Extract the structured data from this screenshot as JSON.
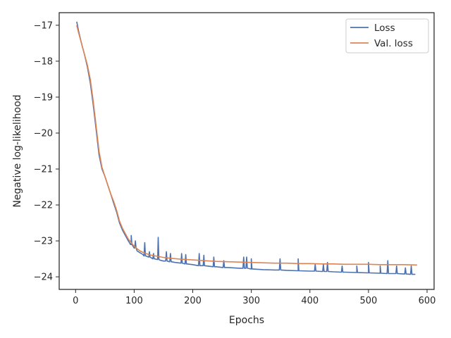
{
  "chart_data": {
    "type": "line",
    "title": "",
    "xlabel": "Epochs",
    "ylabel": "Negative log-likelihood",
    "xlim": [
      -28,
      612
    ],
    "ylim": [
      -24.35,
      -16.65
    ],
    "xticks": [
      0,
      100,
      200,
      300,
      400,
      500,
      600
    ],
    "yticks": [
      -17,
      -18,
      -19,
      -20,
      -21,
      -22,
      -23,
      -24
    ],
    "ytick_labels": [
      "−17",
      "−18",
      "−19",
      "−20",
      "−21",
      "−22",
      "−23",
      "−24"
    ],
    "grid": false,
    "legend_position": "top-right",
    "series": [
      {
        "name": "Loss",
        "color": "#4c72b0",
        "x": [
          2,
          5,
          10,
          15,
          20,
          25,
          30,
          35,
          40,
          45,
          50,
          55,
          60,
          65,
          70,
          75,
          80,
          85,
          90,
          95,
          100,
          105,
          110,
          115,
          120,
          125,
          130,
          135,
          140,
          145,
          150,
          160,
          170,
          180,
          190,
          200,
          220,
          240,
          260,
          280,
          300,
          320,
          340,
          360,
          380,
          400,
          420,
          440,
          460,
          480,
          500,
          520,
          540,
          560,
          580
        ],
        "y": [
          -16.9,
          -17.15,
          -17.5,
          -17.8,
          -18.15,
          -18.6,
          -19.2,
          -19.9,
          -20.6,
          -21.0,
          -21.2,
          -21.45,
          -21.7,
          -21.95,
          -22.2,
          -22.5,
          -22.7,
          -22.85,
          -23.0,
          -23.1,
          -23.2,
          -23.28,
          -23.33,
          -23.38,
          -23.42,
          -23.45,
          -23.48,
          -23.5,
          -23.52,
          -23.54,
          -23.56,
          -23.58,
          -23.6,
          -23.62,
          -23.64,
          -23.66,
          -23.69,
          -23.72,
          -23.74,
          -23.76,
          -23.78,
          -23.8,
          -23.81,
          -23.82,
          -23.83,
          -23.84,
          -23.85,
          -23.86,
          -23.87,
          -23.88,
          -23.89,
          -23.9,
          -23.91,
          -23.92,
          -23.93
        ],
        "spikes": [
          [
            95,
            -22.85
          ],
          [
            102,
            -23.0
          ],
          [
            118,
            -23.05
          ],
          [
            126,
            -23.3
          ],
          [
            133,
            -23.35
          ],
          [
            141,
            -22.9
          ],
          [
            155,
            -23.3
          ],
          [
            162,
            -23.35
          ],
          [
            181,
            -23.35
          ],
          [
            188,
            -23.38
          ],
          [
            211,
            -23.35
          ],
          [
            219,
            -23.4
          ],
          [
            236,
            -23.45
          ],
          [
            253,
            -23.55
          ],
          [
            287,
            -23.45
          ],
          [
            292,
            -23.45
          ],
          [
            300,
            -23.5
          ],
          [
            349,
            -23.5
          ],
          [
            380,
            -23.5
          ],
          [
            409,
            -23.65
          ],
          [
            423,
            -23.65
          ],
          [
            430,
            -23.6
          ],
          [
            455,
            -23.7
          ],
          [
            480,
            -23.7
          ],
          [
            500,
            -23.6
          ],
          [
            520,
            -23.7
          ],
          [
            533,
            -23.55
          ],
          [
            548,
            -23.7
          ],
          [
            563,
            -23.75
          ],
          [
            573,
            -23.7
          ]
        ]
      },
      {
        "name": "Val. loss",
        "color": "#dd8452",
        "x": [
          2,
          5,
          10,
          15,
          20,
          25,
          30,
          35,
          40,
          45,
          50,
          55,
          60,
          65,
          70,
          75,
          80,
          85,
          90,
          95,
          100,
          105,
          110,
          115,
          120,
          125,
          130,
          140,
          150,
          160,
          180,
          200,
          220,
          240,
          260,
          280,
          300,
          320,
          340,
          360,
          380,
          400,
          420,
          440,
          460,
          480,
          500,
          520,
          540,
          560,
          583
        ],
        "y": [
          -17.0,
          -17.2,
          -17.5,
          -17.8,
          -18.1,
          -18.5,
          -19.1,
          -19.8,
          -20.5,
          -20.95,
          -21.2,
          -21.45,
          -21.7,
          -21.9,
          -22.15,
          -22.45,
          -22.65,
          -22.8,
          -22.95,
          -23.05,
          -23.15,
          -23.22,
          -23.28,
          -23.32,
          -23.35,
          -23.38,
          -23.4,
          -23.43,
          -23.46,
          -23.48,
          -23.51,
          -23.53,
          -23.55,
          -23.57,
          -23.58,
          -23.59,
          -23.6,
          -23.61,
          -23.62,
          -23.62,
          -23.63,
          -23.63,
          -23.64,
          -23.64,
          -23.65,
          -23.65,
          -23.65,
          -23.66,
          -23.66,
          -23.66,
          -23.67
        ]
      }
    ]
  }
}
